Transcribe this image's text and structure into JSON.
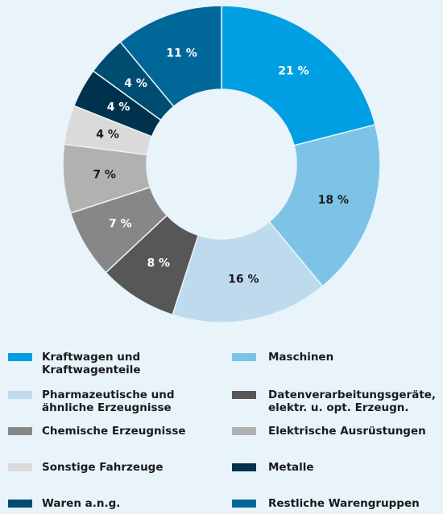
{
  "chart_data": {
    "type": "donut",
    "categories": [
      "Kraftwagen und Kraftwagenteile",
      "Maschinen",
      "Pharmazeutische und ähnliche Erzeugnisse",
      "Datenverarbeitungsgeräte, elektr. u. opt. Erzeugn.",
      "Chemische Erzeugnisse",
      "Elektrische Ausrüstungen",
      "Sonstige Fahrzeuge",
      "Metalle",
      "Waren a.n.g.",
      "Restliche Warengruppen"
    ],
    "values": [
      21,
      18,
      16,
      8,
      7,
      7,
      4,
      4,
      4,
      11
    ],
    "value_labels": [
      "21 %",
      "18 %",
      "16 %",
      "8 %",
      "7 %",
      "7 %",
      "4 %",
      "4 %",
      "4 %",
      "11 %"
    ],
    "colors": [
      "#009fe3",
      "#7dc3e8",
      "#bedbee",
      "#575757",
      "#878787",
      "#b1b1b1",
      "#dadada",
      "#00324e",
      "#004d72",
      "#006898"
    ],
    "legend": "bottom"
  }
}
